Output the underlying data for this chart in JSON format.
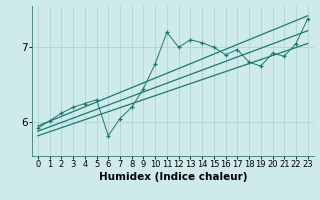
{
  "bg_color": "#ceeaea",
  "line_color": "#1a7a6e",
  "grid_color": "#aed0d0",
  "xlabel": "Humidex (Indice chaleur)",
  "xlabel_fontsize": 7.5,
  "xlim": [
    -0.5,
    23.5
  ],
  "ylim": [
    5.55,
    7.55
  ],
  "yticks": [
    6,
    7
  ],
  "xticks": [
    0,
    1,
    2,
    3,
    4,
    5,
    6,
    7,
    8,
    9,
    10,
    11,
    12,
    13,
    14,
    15,
    16,
    17,
    18,
    19,
    20,
    21,
    22,
    23
  ],
  "data_x": [
    0,
    1,
    2,
    3,
    4,
    5,
    6,
    7,
    8,
    9,
    10,
    11,
    12,
    13,
    14,
    15,
    16,
    17,
    18,
    19,
    20,
    21,
    22,
    23
  ],
  "data_y": [
    5.92,
    6.02,
    6.12,
    6.2,
    6.25,
    6.3,
    5.82,
    6.05,
    6.2,
    6.45,
    6.78,
    7.2,
    7.0,
    7.1,
    7.06,
    7.0,
    6.9,
    6.97,
    6.8,
    6.75,
    6.92,
    6.88,
    7.05,
    7.38
  ],
  "trend_upper_y0": 5.95,
  "trend_upper_y1": 7.42,
  "trend_mid_y0": 5.88,
  "trend_mid_y1": 7.22,
  "trend_lower_y0": 5.82,
  "trend_lower_y1": 7.05
}
